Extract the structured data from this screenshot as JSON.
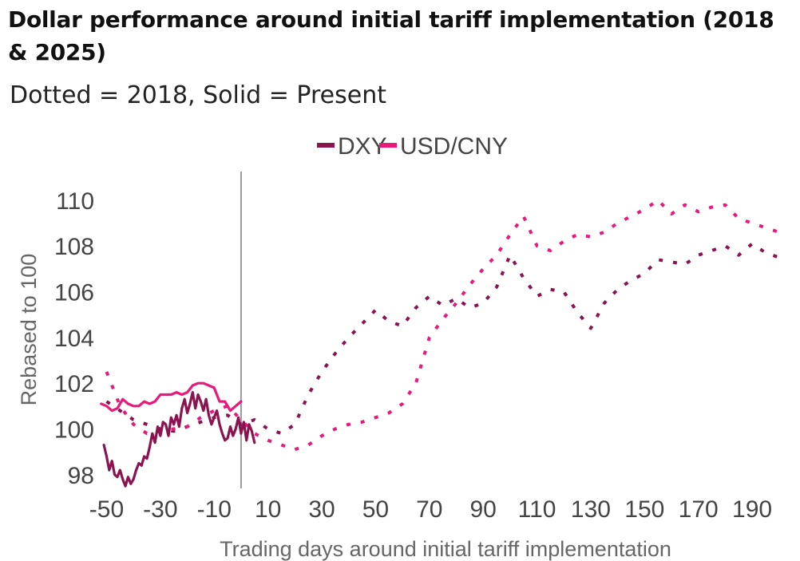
{
  "chart_data": {
    "type": "line",
    "title": "Dollar performance around initial tariff implementation (2018 & 2025)",
    "subtitle": "Dotted = 2018, Solid = Present",
    "xlabel": "Trading days around initial tariff implementation",
    "ylabel": "Rebased to 100",
    "xlim": [
      -54,
      206
    ],
    "ylim": [
      97.4,
      110.8
    ],
    "x_ticks": [
      -50,
      -30,
      -10,
      10,
      30,
      50,
      70,
      90,
      110,
      130,
      150,
      170,
      190
    ],
    "x_tick_labels": [
      "-50",
      "-30",
      "-10",
      "10",
      "30",
      "50",
      "70",
      "90",
      "110",
      "130",
      "150",
      "170",
      "190"
    ],
    "y_ticks": [
      98,
      100,
      102,
      104,
      106,
      108,
      110
    ],
    "y_tick_labels": [
      "98",
      "100",
      "102",
      "104",
      "106",
      "108",
      "110"
    ],
    "reference_line_x": 0,
    "grid": false,
    "legend": {
      "placement": "top",
      "entries": [
        {
          "label": "DXY",
          "color": "#8b1450"
        },
        {
          "label": "USD/CNY",
          "color": "#e8197a"
        }
      ]
    },
    "series": [
      {
        "name": "DXY",
        "period": "2018",
        "style": "dotted",
        "color": "#8b1450",
        "x": [
          -50,
          -45,
          -40,
          -35,
          -30,
          -25,
          -20,
          -15,
          -10,
          -5,
          0,
          5,
          10,
          15,
          20,
          25,
          30,
          35,
          40,
          45,
          50,
          55,
          60,
          65,
          70,
          75,
          80,
          85,
          90,
          95,
          100,
          105,
          110,
          115,
          120,
          125,
          130,
          135,
          140,
          145,
          150,
          155,
          160,
          165,
          170,
          175,
          180,
          185,
          190,
          195,
          200
        ],
        "y": [
          101.2,
          100.8,
          100.4,
          100.2,
          100.0,
          99.9,
          100.1,
          100.3,
          100.5,
          100.6,
          100.2,
          100.4,
          100.0,
          99.8,
          100.2,
          101.5,
          102.5,
          103.3,
          104.0,
          104.6,
          105.2,
          104.7,
          104.5,
          105.3,
          105.8,
          105.4,
          105.7,
          105.3,
          105.5,
          106.2,
          107.6,
          106.6,
          105.8,
          106.1,
          106.0,
          105.1,
          104.4,
          105.5,
          106.1,
          106.5,
          106.8,
          107.4,
          107.3,
          107.2,
          107.6,
          107.8,
          108.0,
          107.6,
          108.1,
          107.7,
          107.5
        ]
      },
      {
        "name": "USD/CNY",
        "period": "2018",
        "style": "dotted",
        "color": "#e8197a",
        "x": [
          -50,
          -45,
          -40,
          -35,
          -30,
          -25,
          -20,
          -15,
          -10,
          -5,
          0,
          5,
          10,
          15,
          20,
          25,
          30,
          35,
          40,
          45,
          50,
          55,
          60,
          65,
          70,
          75,
          80,
          85,
          90,
          95,
          100,
          105,
          110,
          115,
          120,
          125,
          130,
          135,
          140,
          145,
          150,
          155,
          160,
          165,
          170,
          175,
          180,
          185,
          190,
          195,
          200
        ],
        "y": [
          102.5,
          101.0,
          100.2,
          99.8,
          99.9,
          100.0,
          100.1,
          100.5,
          100.8,
          101.0,
          100.4,
          99.8,
          99.5,
          99.3,
          99.1,
          99.3,
          99.7,
          100.0,
          100.2,
          100.3,
          100.5,
          100.7,
          101.1,
          102.0,
          104.0,
          104.8,
          105.5,
          106.3,
          107.0,
          107.6,
          108.5,
          109.3,
          108.0,
          107.8,
          108.2,
          108.5,
          108.4,
          108.6,
          109.0,
          109.3,
          109.6,
          110.0,
          109.4,
          109.8,
          109.5,
          109.7,
          109.8,
          109.2,
          109.0,
          108.8,
          108.6
        ]
      },
      {
        "name": "DXY",
        "period": "Present",
        "style": "solid",
        "color": "#8b1450",
        "x": [
          -51,
          -50,
          -49,
          -48,
          -47,
          -46,
          -45,
          -44,
          -43,
          -42,
          -41,
          -40,
          -39,
          -38,
          -37,
          -36,
          -35,
          -34,
          -33,
          -32,
          -31,
          -30,
          -29,
          -28,
          -27,
          -26,
          -25,
          -24,
          -23,
          -22,
          -21,
          -20,
          -19,
          -18,
          -17,
          -16,
          -15,
          -14,
          -13,
          -12,
          -11,
          -10,
          -9,
          -8,
          -7,
          -6,
          -5,
          -4,
          -3,
          -2,
          -1,
          0,
          1,
          2,
          3,
          4,
          5
        ],
        "y": [
          99.3,
          98.8,
          98.2,
          98.6,
          98.0,
          97.9,
          98.2,
          97.8,
          97.5,
          97.9,
          97.6,
          97.8,
          98.2,
          98.5,
          98.4,
          98.8,
          98.7,
          99.2,
          99.8,
          99.4,
          100.1,
          99.7,
          100.3,
          100.2,
          99.7,
          100.5,
          100.2,
          100.6,
          100.1,
          100.9,
          101.3,
          100.7,
          101.1,
          101.6,
          100.9,
          101.5,
          101.2,
          100.8,
          101.3,
          100.6,
          100.2,
          100.5,
          100.8,
          100.2,
          99.8,
          99.5,
          99.6,
          100.1,
          99.7,
          100.0,
          100.5,
          99.8,
          100.3,
          99.5,
          100.2,
          99.9,
          99.4
        ]
      },
      {
        "name": "USD/CNY",
        "period": "Present",
        "style": "solid",
        "color": "#e8197a",
        "x": [
          -52,
          -50,
          -48,
          -46,
          -44,
          -42,
          -40,
          -38,
          -36,
          -34,
          -32,
          -30,
          -28,
          -26,
          -24,
          -22,
          -20,
          -18,
          -16,
          -14,
          -12,
          -10,
          -8,
          -6,
          -4,
          -2,
          0
        ],
        "y": [
          101.1,
          101.0,
          100.8,
          100.9,
          101.3,
          101.1,
          101.0,
          101.0,
          101.2,
          101.1,
          101.2,
          101.5,
          101.5,
          101.5,
          101.6,
          101.5,
          101.6,
          101.9,
          102.0,
          102.0,
          101.9,
          101.8,
          101.2,
          101.2,
          100.8,
          101.0,
          101.2
        ]
      }
    ]
  }
}
